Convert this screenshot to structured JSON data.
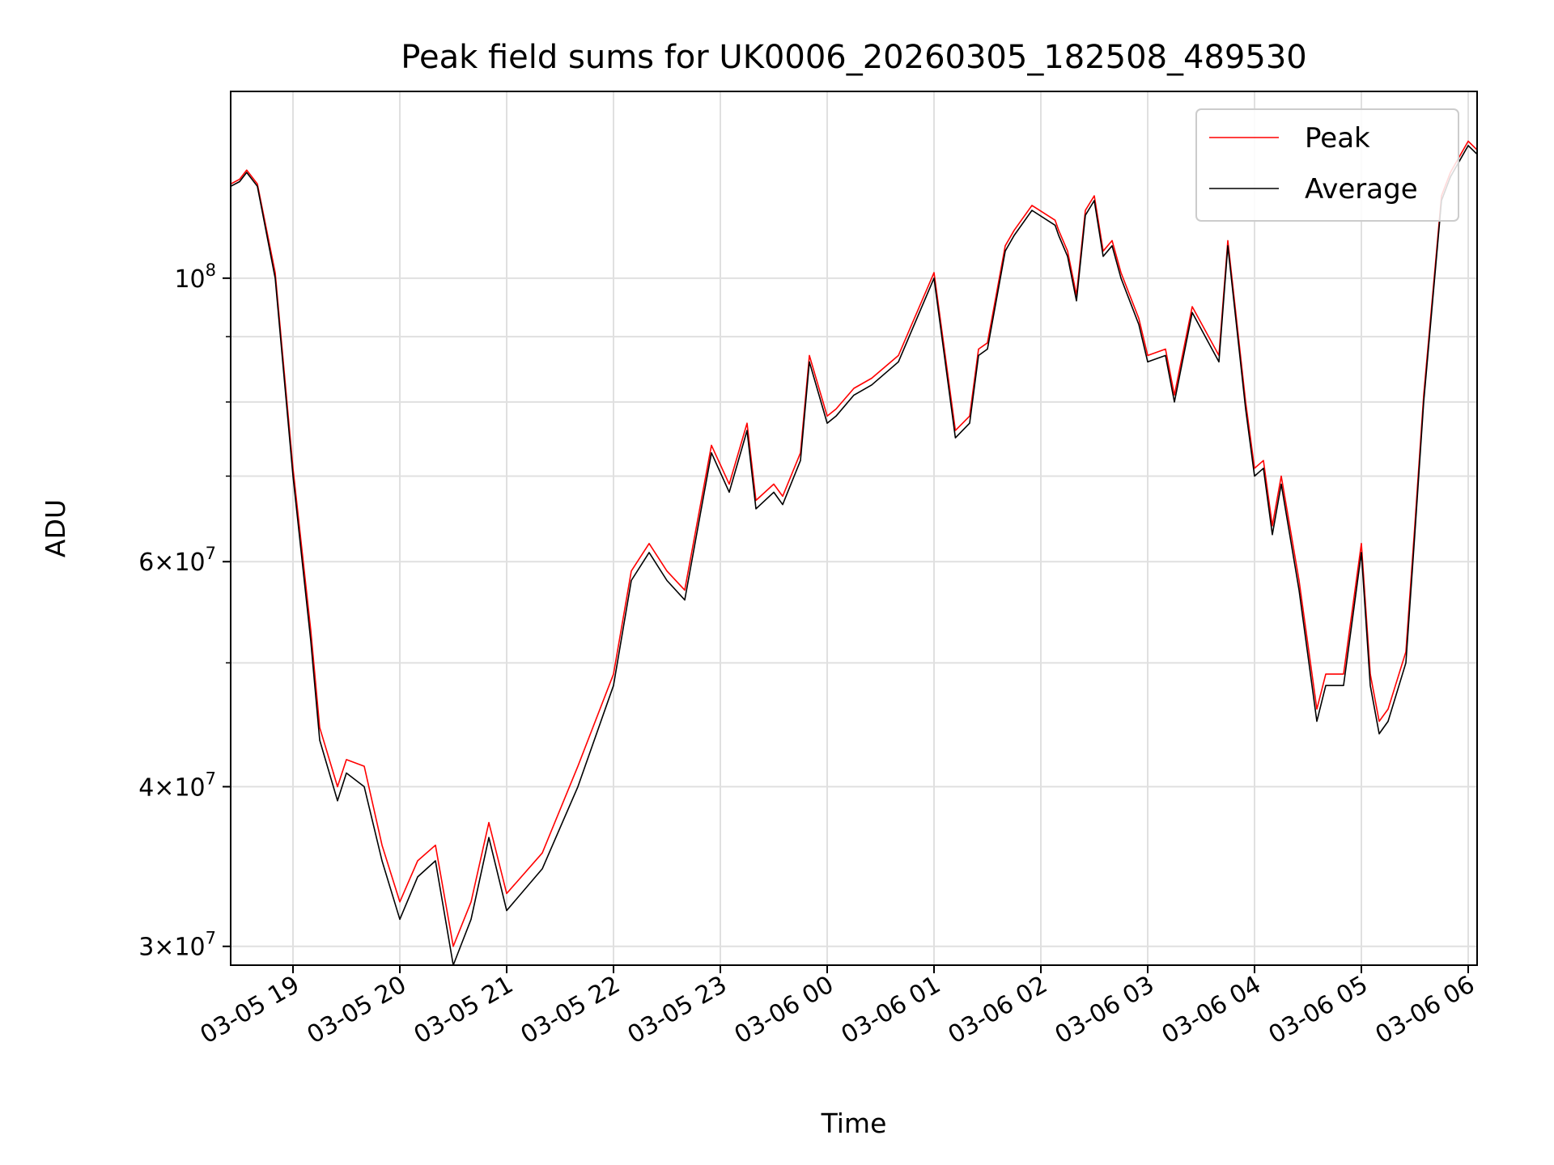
{
  "chart_data": {
    "type": "line",
    "title": "Peak field sums for UK0006_20260305_182508_489530",
    "xlabel": "Time",
    "ylabel": "ADU",
    "yscale": "log",
    "ylim": [
      29000000,
      140000000
    ],
    "xlim": [
      "2026-03-05 18:25",
      "2026-03-06 06:05"
    ],
    "grid": true,
    "legend_position": "top-right",
    "x_tick_labels": [
      "03-05 19",
      "03-05 20",
      "03-05 21",
      "03-05 22",
      "03-05 23",
      "03-06 00",
      "03-06 01",
      "03-06 02",
      "03-06 03",
      "03-06 04",
      "03-06 05",
      "03-06 06"
    ],
    "y_tick_labels": [
      {
        "value": 30000000,
        "mantissa": "3",
        "exponent": "7"
      },
      {
        "value": 40000000,
        "mantissa": "4",
        "exponent": "7"
      },
      {
        "value": 60000000,
        "mantissa": "6",
        "exponent": "7"
      },
      {
        "value": 100000000,
        "mantissa": "",
        "exponent": "8"
      }
    ],
    "x": [
      "2026-03-05 18:25",
      "2026-03-05 18:30",
      "2026-03-05 18:34",
      "2026-03-05 18:40",
      "2026-03-05 18:50",
      "2026-03-05 19:00",
      "2026-03-05 19:10",
      "2026-03-05 19:15",
      "2026-03-05 19:25",
      "2026-03-05 19:30",
      "2026-03-05 19:40",
      "2026-03-05 19:50",
      "2026-03-05 20:00",
      "2026-03-05 20:10",
      "2026-03-05 20:20",
      "2026-03-05 20:30",
      "2026-03-05 20:40",
      "2026-03-05 20:50",
      "2026-03-05 21:00",
      "2026-03-05 21:20",
      "2026-03-05 21:40",
      "2026-03-05 22:00",
      "2026-03-05 22:10",
      "2026-03-05 22:20",
      "2026-03-05 22:30",
      "2026-03-05 22:40",
      "2026-03-05 22:55",
      "2026-03-05 23:05",
      "2026-03-05 23:15",
      "2026-03-05 23:20",
      "2026-03-05 23:30",
      "2026-03-05 23:35",
      "2026-03-05 23:45",
      "2026-03-05 23:50",
      "2026-03-06 00:00",
      "2026-03-06 00:05",
      "2026-03-06 00:15",
      "2026-03-06 00:25",
      "2026-03-06 00:40",
      "2026-03-06 01:00",
      "2026-03-06 01:12",
      "2026-03-06 01:20",
      "2026-03-06 01:25",
      "2026-03-06 01:30",
      "2026-03-06 01:40",
      "2026-03-06 01:45",
      "2026-03-06 01:55",
      "2026-03-06 02:08",
      "2026-03-06 02:10",
      "2026-03-06 02:15",
      "2026-03-06 02:20",
      "2026-03-06 02:25",
      "2026-03-06 02:30",
      "2026-03-06 02:35",
      "2026-03-06 02:40",
      "2026-03-06 02:45",
      "2026-03-06 02:55",
      "2026-03-06 03:00",
      "2026-03-06 03:10",
      "2026-03-06 03:15",
      "2026-03-06 03:25",
      "2026-03-06 03:40",
      "2026-03-06 03:45",
      "2026-03-06 03:55",
      "2026-03-06 04:00",
      "2026-03-06 04:05",
      "2026-03-06 04:10",
      "2026-03-06 04:15",
      "2026-03-06 04:25",
      "2026-03-06 04:35",
      "2026-03-06 04:40",
      "2026-03-06 04:50",
      "2026-03-06 05:00",
      "2026-03-06 05:05",
      "2026-03-06 05:10",
      "2026-03-06 05:15",
      "2026-03-06 05:25",
      "2026-03-06 05:30",
      "2026-03-06 05:35",
      "2026-03-06 05:45",
      "2026-03-06 05:50",
      "2026-03-06 06:00",
      "2026-03-06 06:05"
    ],
    "series": [
      {
        "name": "Average",
        "color": "#000000",
        "values": [
          118000000,
          119000000,
          121000000,
          118000000,
          100000000,
          70000000,
          52000000,
          43500000,
          39000000,
          41000000,
          40000000,
          35000000,
          31500000,
          34000000,
          35000000,
          29000000,
          31500000,
          36500000,
          32000000,
          34500000,
          40000000,
          48000000,
          58000000,
          61000000,
          58000000,
          56000000,
          73000000,
          68000000,
          76000000,
          66000000,
          68000000,
          66500000,
          72000000,
          86000000,
          77000000,
          78000000,
          81000000,
          82500000,
          86000000,
          100000000,
          75000000,
          77000000,
          87000000,
          88000000,
          105000000,
          108000000,
          113000000,
          110000000,
          108000000,
          104000000,
          96000000,
          112000000,
          115000000,
          104000000,
          106000000,
          100000000,
          92000000,
          86000000,
          87000000,
          80000000,
          94000000,
          86000000,
          106000000,
          79000000,
          70000000,
          71000000,
          63000000,
          69000000,
          57000000,
          45000000,
          48000000,
          48000000,
          61000000,
          48000000,
          44000000,
          45000000,
          50000000,
          63000000,
          80000000,
          115000000,
          120000000,
          127000000,
          125000000
        ]
      },
      {
        "name": "Peak",
        "color": "#ff0000",
        "values": [
          118500000,
          119500000,
          121500000,
          118500000,
          101000000,
          71000000,
          53000000,
          44500000,
          40000000,
          42000000,
          41500000,
          36000000,
          32500000,
          35000000,
          36000000,
          30000000,
          32500000,
          37500000,
          33000000,
          35500000,
          41500000,
          49000000,
          59000000,
          62000000,
          59000000,
          57000000,
          74000000,
          69000000,
          77000000,
          67000000,
          69000000,
          67500000,
          73000000,
          87000000,
          78000000,
          79000000,
          82000000,
          83500000,
          87000000,
          101000000,
          76000000,
          78000000,
          88000000,
          89000000,
          106000000,
          109000000,
          114000000,
          111000000,
          109000000,
          105000000,
          97000000,
          113000000,
          116000000,
          105000000,
          107000000,
          101000000,
          93000000,
          87000000,
          88000000,
          81000000,
          95000000,
          87000000,
          107000000,
          80000000,
          71000000,
          72000000,
          64000000,
          70000000,
          58000000,
          46000000,
          49000000,
          49000000,
          62000000,
          49000000,
          45000000,
          46000000,
          51000000,
          64000000,
          81000000,
          116000000,
          121000000,
          128000000,
          126000000
        ]
      }
    ]
  }
}
